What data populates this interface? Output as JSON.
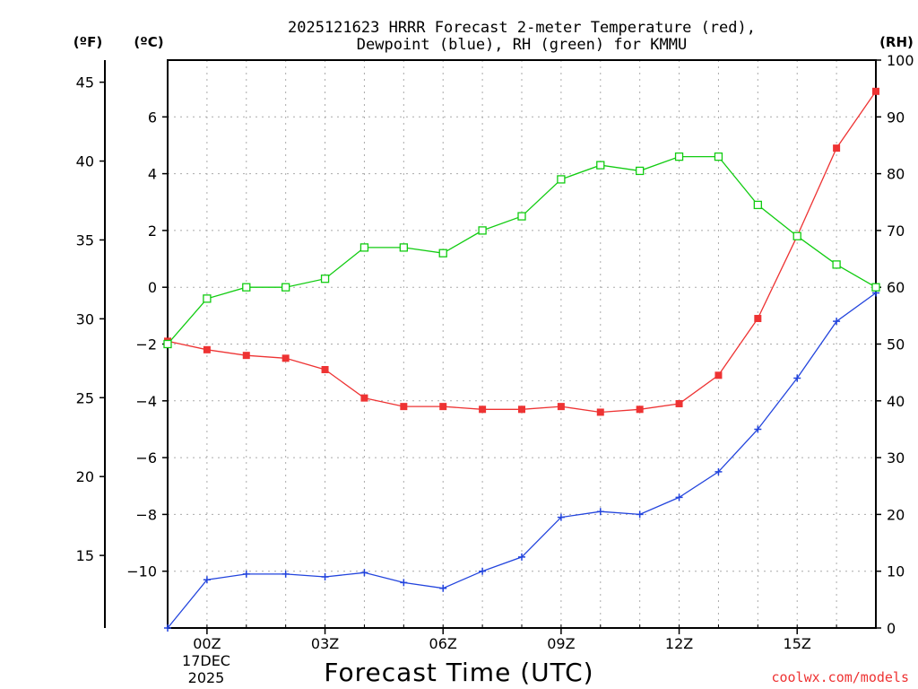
{
  "chart_data": {
    "type": "line",
    "title_lines": [
      "2025121623 HRRR Forecast 2-meter Temperature (red),",
      "Dewpoint (blue), RH (green) for KMMU"
    ],
    "units": {
      "fahrenheit": "(ºF)",
      "celsius": "(ºC)",
      "rh": "(RH)"
    },
    "xlabel": "Forecast Time (UTC)",
    "credit": "coolwx.com/models",
    "colors": {
      "temperature": "#ee3333",
      "dewpoint": "#2244dd",
      "rh": "#11cc11",
      "grid": "#aaaaaa"
    },
    "x": [
      23,
      24,
      25,
      26,
      27,
      28,
      29,
      30,
      31,
      32,
      33,
      34,
      35,
      36,
      37,
      38,
      39,
      40,
      41
    ],
    "xlim": [
      23,
      41
    ],
    "x_ticks": [
      {
        "x": 24,
        "label": "00Z"
      },
      {
        "x": 27,
        "label": "03Z"
      },
      {
        "x": 30,
        "label": "06Z"
      },
      {
        "x": 33,
        "label": "09Z"
      },
      {
        "x": 36,
        "label": "12Z"
      },
      {
        "x": 39,
        "label": "15Z"
      }
    ],
    "date_label": [
      "17DEC",
      "2025"
    ],
    "celsius_axis": {
      "range": [
        -12,
        8
      ],
      "ticks": [
        6,
        4,
        2,
        0,
        -2,
        -4,
        -6,
        -8,
        -10
      ],
      "tick_labels": [
        "6",
        "4",
        "2",
        "0",
        "−2",
        "−4",
        "−6",
        "−8",
        "−10"
      ]
    },
    "fahrenheit_axis": {
      "ticks": [
        45,
        40,
        35,
        30,
        25,
        20,
        15
      ],
      "tick_labels": [
        "45",
        "40",
        "35",
        "30",
        "25",
        "20",
        "15"
      ]
    },
    "rh_axis": {
      "range": [
        0,
        100
      ],
      "ticks": [
        100,
        90,
        80,
        70,
        60,
        50,
        40,
        30,
        20,
        10,
        0
      ],
      "tick_labels": [
        "100",
        "90",
        "80",
        "70",
        "60",
        "50",
        "40",
        "30",
        "20",
        "10",
        "0"
      ]
    },
    "series": [
      {
        "name": "Temperature",
        "axis": "celsius",
        "marker": "filled-square",
        "values": [
          -1.9,
          -2.2,
          -2.4,
          -2.5,
          -2.9,
          -3.9,
          -4.2,
          -4.2,
          -4.3,
          -4.3,
          -4.2,
          -4.4,
          -4.3,
          -4.1,
          -3.1,
          -1.1,
          1.8,
          4.9,
          6.9
        ]
      },
      {
        "name": "Dewpoint",
        "axis": "celsius",
        "marker": "plus",
        "values": [
          -12.0,
          -10.3,
          -10.1,
          -10.1,
          -10.2,
          -10.05,
          -10.4,
          -10.6,
          -10.0,
          -9.5,
          -8.1,
          -7.9,
          -8.0,
          -7.4,
          -6.5,
          -5.0,
          -3.2,
          -1.2,
          -0.2
        ]
      },
      {
        "name": "RH",
        "axis": "rh",
        "marker": "open-square",
        "values": [
          50,
          58,
          60,
          60,
          61.5,
          67,
          67,
          66,
          70,
          72.5,
          79,
          81.5,
          80.5,
          83,
          83,
          74.5,
          69,
          64,
          60
        ]
      }
    ]
  }
}
